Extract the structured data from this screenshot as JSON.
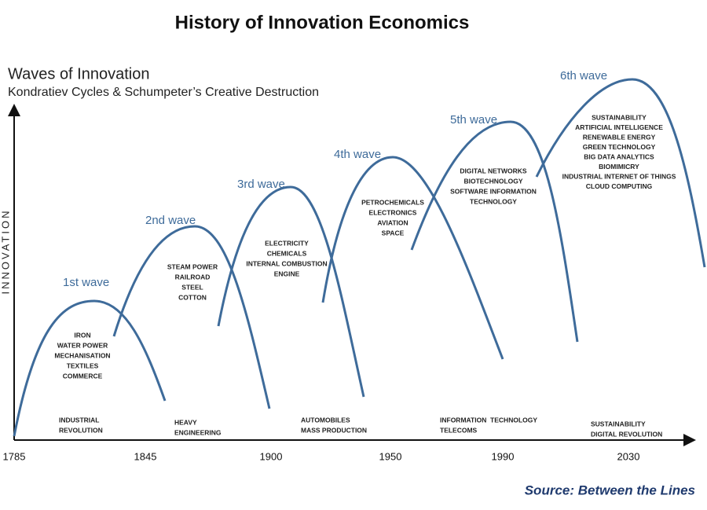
{
  "title": "History of Innovation Economics",
  "heading": "Waves of Innovation",
  "subheading": "Kondratiev Cycles & Schumpeter’s Creative Destruction",
  "y_axis_label": "INNOVATION",
  "x_labels": [
    "1785",
    "1845",
    "1900",
    "1950",
    "1990",
    "2030"
  ],
  "waves": [
    {
      "name": "1st wave",
      "technologies": [
        "IRON",
        "WATER POWER",
        "MECHANISATION",
        "TEXTILES",
        "COMMERCE"
      ]
    },
    {
      "name": "2nd wave",
      "technologies": [
        "STEAM POWER",
        "RAILROAD",
        "STEEL",
        "COTTON"
      ]
    },
    {
      "name": "3rd wave",
      "technologies": [
        "ELECTRICITY",
        "CHEMICALS",
        "INTERNAL COMBUSTION",
        "ENGINE"
      ]
    },
    {
      "name": "4th wave",
      "technologies": [
        "PETROCHEMICALS",
        "ELECTRONICS",
        "AVIATION",
        "SPACE"
      ]
    },
    {
      "name": "5th wave",
      "technologies": [
        "DIGITAL NETWORKS",
        "BIOTECHNOLOGY",
        "SOFTWARE INFORMATION",
        "TECHNOLOGY"
      ]
    },
    {
      "name": "6th wave",
      "technologies": [
        "SUSTAINABILITY",
        "ARTIFICIAL INTELLIGENCE",
        "RENEWABLE ENERGY",
        "GREEN TECHNOLOGY",
        "BIG DATA ANALYTICS",
        "BIOMIMICRY",
        "INDUSTRIAL INTERNET OF THINGS",
        "CLOUD COMPUTING"
      ]
    }
  ],
  "eras": [
    [
      "INDUSTRIAL",
      "REVOLUTION"
    ],
    [
      "HEAVY",
      "ENGINEERING"
    ],
    [
      "AUTOMOBILES",
      "MASS PRODUCTION"
    ],
    [
      "INFORMATION  TECHNOLOGY",
      "TELECOMS"
    ],
    [
      "SUSTAINABILITY",
      "DIGITAL REVOLUTION"
    ]
  ],
  "source": "Source: Between the Lines"
}
